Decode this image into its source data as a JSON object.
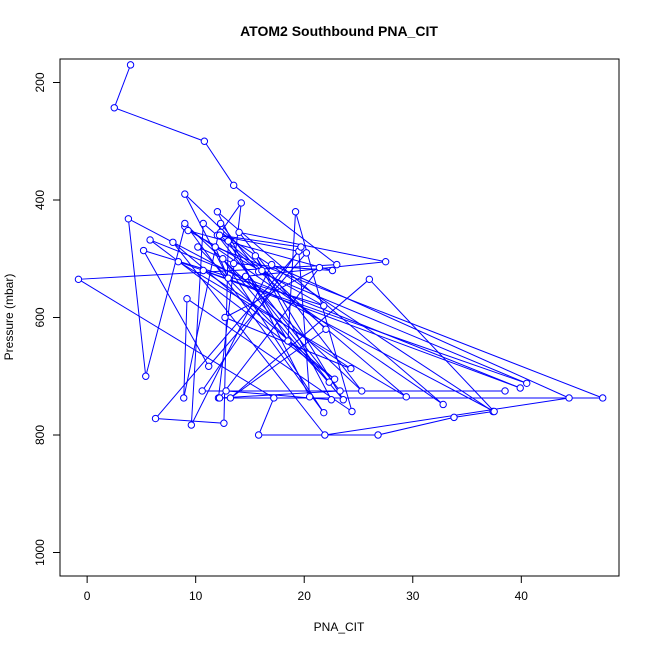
{
  "chart_data": {
    "type": "line",
    "title": "ATOM2 Southbound PNA_CIT",
    "xlabel": "PNA_CIT",
    "ylabel": "Pressure (mbar)",
    "xlim": [
      -2.5,
      49
    ],
    "ylim": [
      1040,
      160
    ],
    "y_reversed": true,
    "grid": false,
    "legend": "none",
    "xticks": [
      0,
      10,
      20,
      30,
      40
    ],
    "yticks": [
      200,
      400,
      600,
      800,
      1000
    ],
    "series_color": "#0000ff",
    "series": [
      {
        "points": [
          [
            4.0,
            170
          ],
          [
            2.5,
            243
          ],
          [
            10.8,
            300
          ],
          [
            13.5,
            375
          ],
          [
            23.0,
            510
          ],
          [
            -0.8,
            535
          ],
          [
            17.2,
            737
          ],
          [
            15.8,
            800
          ],
          [
            26.8,
            800
          ],
          [
            33.8,
            770
          ],
          [
            37.4,
            760
          ],
          [
            12.3,
            455
          ],
          [
            14.2,
            405
          ],
          [
            12.1,
            737
          ],
          [
            47.5,
            737
          ],
          [
            11.8,
            480
          ],
          [
            13.0,
            533
          ],
          [
            9.0,
            390
          ],
          [
            22.0,
            620
          ],
          [
            13.2,
            737
          ],
          [
            26.0,
            535
          ],
          [
            37.5,
            760
          ],
          [
            3.8,
            432
          ],
          [
            5.4,
            700
          ],
          [
            9.0,
            445
          ],
          [
            32.8,
            748
          ],
          [
            12.0,
            420
          ],
          [
            20.5,
            735
          ],
          [
            19.5,
            487
          ],
          [
            6.3,
            772
          ],
          [
            12.6,
            780
          ],
          [
            13.0,
            470
          ],
          [
            18.5,
            640
          ],
          [
            19.2,
            420
          ],
          [
            24.4,
            760
          ],
          [
            9.2,
            568
          ],
          [
            8.9,
            737
          ],
          [
            12.3,
            440
          ],
          [
            15.8,
            522
          ],
          [
            40.5,
            712
          ],
          [
            8.4,
            505
          ],
          [
            29.4,
            735
          ],
          [
            10.7,
            440
          ],
          [
            9.6,
            783
          ],
          [
            17.0,
            510
          ],
          [
            44.4,
            737
          ],
          [
            21.9,
            800
          ],
          [
            7.9,
            472
          ],
          [
            22.8,
            705
          ],
          [
            5.8,
            468
          ],
          [
            39.9,
            720
          ],
          [
            10.7,
            520
          ],
          [
            24.3,
            687
          ],
          [
            12.7,
            600
          ],
          [
            21.4,
            515
          ],
          [
            12.2,
            737
          ],
          [
            23.3,
            725
          ],
          [
            12.0,
            460
          ],
          [
            20.2,
            490
          ],
          [
            11.2,
            683
          ],
          [
            5.2,
            486
          ],
          [
            21.8,
            580
          ],
          [
            9.3,
            452
          ],
          [
            22.6,
            520
          ],
          [
            13.5,
            508
          ],
          [
            10.2,
            480
          ],
          [
            22.3,
            710
          ],
          [
            14.6,
            530
          ],
          [
            27.5,
            505
          ],
          [
            14.0,
            455
          ],
          [
            25.3,
            725
          ],
          [
            9.0,
            440
          ],
          [
            21.8,
            762
          ],
          [
            12.5,
            500
          ],
          [
            23.6,
            740
          ],
          [
            15.5,
            495
          ],
          [
            22.5,
            740
          ],
          [
            12.8,
            725
          ],
          [
            38.5,
            725
          ],
          [
            10.6,
            725
          ],
          [
            19.7,
            480
          ],
          [
            12.2,
            460
          ],
          [
            16.1,
            520
          ]
        ]
      }
    ]
  }
}
